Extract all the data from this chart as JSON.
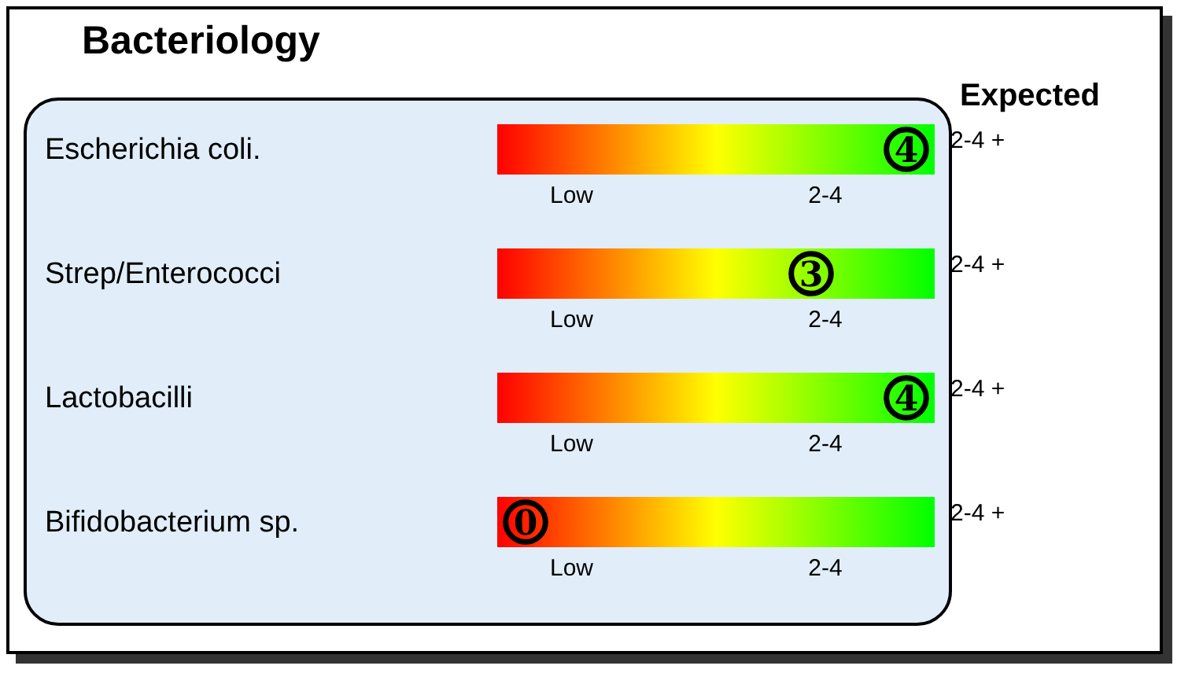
{
  "chart_data": {
    "type": "other",
    "title": "Bacteriology",
    "y2label": "Expected",
    "categories": [
      "Escherichia coli.",
      "Strep/Enterococci",
      "Lactobacilli",
      "Bifidobacterium sp."
    ],
    "y2_categories": [
      "2-4 +",
      "2-4 +",
      "2-4 +",
      "2-4 +"
    ],
    "values": [
      4,
      3,
      4,
      0
    ],
    "data_labels": true,
    "annotations": [
      "Low",
      "2-4"
    ]
  }
}
